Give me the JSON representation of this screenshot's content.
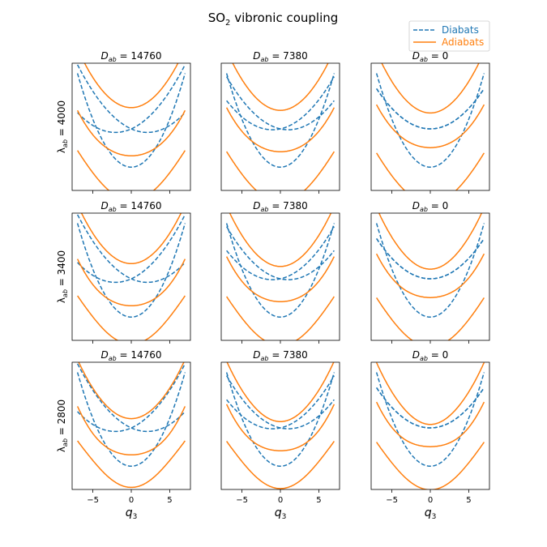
{
  "figure": {
    "title_main": "SO",
    "title_sub": "2",
    "title_rest": " vibronic coupling"
  },
  "legend": {
    "placement": "top-right",
    "entries": [
      {
        "label": "Diabats",
        "color": "#1f77b4",
        "style": "dashed"
      },
      {
        "label": "Adiabats",
        "color": "#ff7f0e",
        "style": "solid"
      }
    ]
  },
  "rows": [
    {
      "ylabel": "λ",
      "ylabel_sub": "ab",
      "ylabel_rest": " = 4000",
      "lambda": 4000
    },
    {
      "ylabel": "λ",
      "ylabel_sub": "ab",
      "ylabel_rest": " = 3400",
      "lambda": 3400
    },
    {
      "ylabel": "λ",
      "ylabel_sub": "ab",
      "ylabel_rest": " = 2800",
      "lambda": 2800
    }
  ],
  "columns": [
    {
      "title_var": "D",
      "title_sub": "ab",
      "title_rest": " = 14760",
      "D": 14760
    },
    {
      "title_var": "D",
      "title_sub": "ab",
      "title_rest": " = 7380",
      "D": 7380
    },
    {
      "title_var": "D",
      "title_sub": "ab",
      "title_rest": " = 0",
      "D": 0
    }
  ],
  "xaxis": {
    "label": "q",
    "label_sub": "3",
    "ticks": [
      "−5",
      "0",
      "5"
    ],
    "tick_values": [
      -5,
      0,
      5
    ],
    "xlim": [
      -7.7,
      7.7
    ]
  },
  "chart_data": {
    "type": "line",
    "x_range": [
      -7,
      7
    ],
    "ylim": [
      -1.7,
      7.6
    ],
    "y_ticks_shown": false,
    "series": [
      {
        "name": "Diabats",
        "color": "#1f77b4",
        "style": "dashed"
      },
      {
        "name": "Adiabats",
        "color": "#ff7f0e",
        "style": "solid"
      }
    ],
    "panels": [
      {
        "row": 0,
        "col": 0,
        "lambda": 4000,
        "D": 14760
      },
      {
        "row": 0,
        "col": 1,
        "lambda": 4000,
        "D": 7380
      },
      {
        "row": 0,
        "col": 2,
        "lambda": 4000,
        "D": 0
      },
      {
        "row": 1,
        "col": 0,
        "lambda": 3400,
        "D": 14760
      },
      {
        "row": 1,
        "col": 1,
        "lambda": 3400,
        "D": 7380
      },
      {
        "row": 1,
        "col": 2,
        "lambda": 3400,
        "D": 0
      },
      {
        "row": 2,
        "col": 0,
        "lambda": 2800,
        "D": 14760
      },
      {
        "row": 2,
        "col": 1,
        "lambda": 2800,
        "D": 7380
      },
      {
        "row": 2,
        "col": 2,
        "lambda": 2800,
        "D": 0
      }
    ]
  }
}
